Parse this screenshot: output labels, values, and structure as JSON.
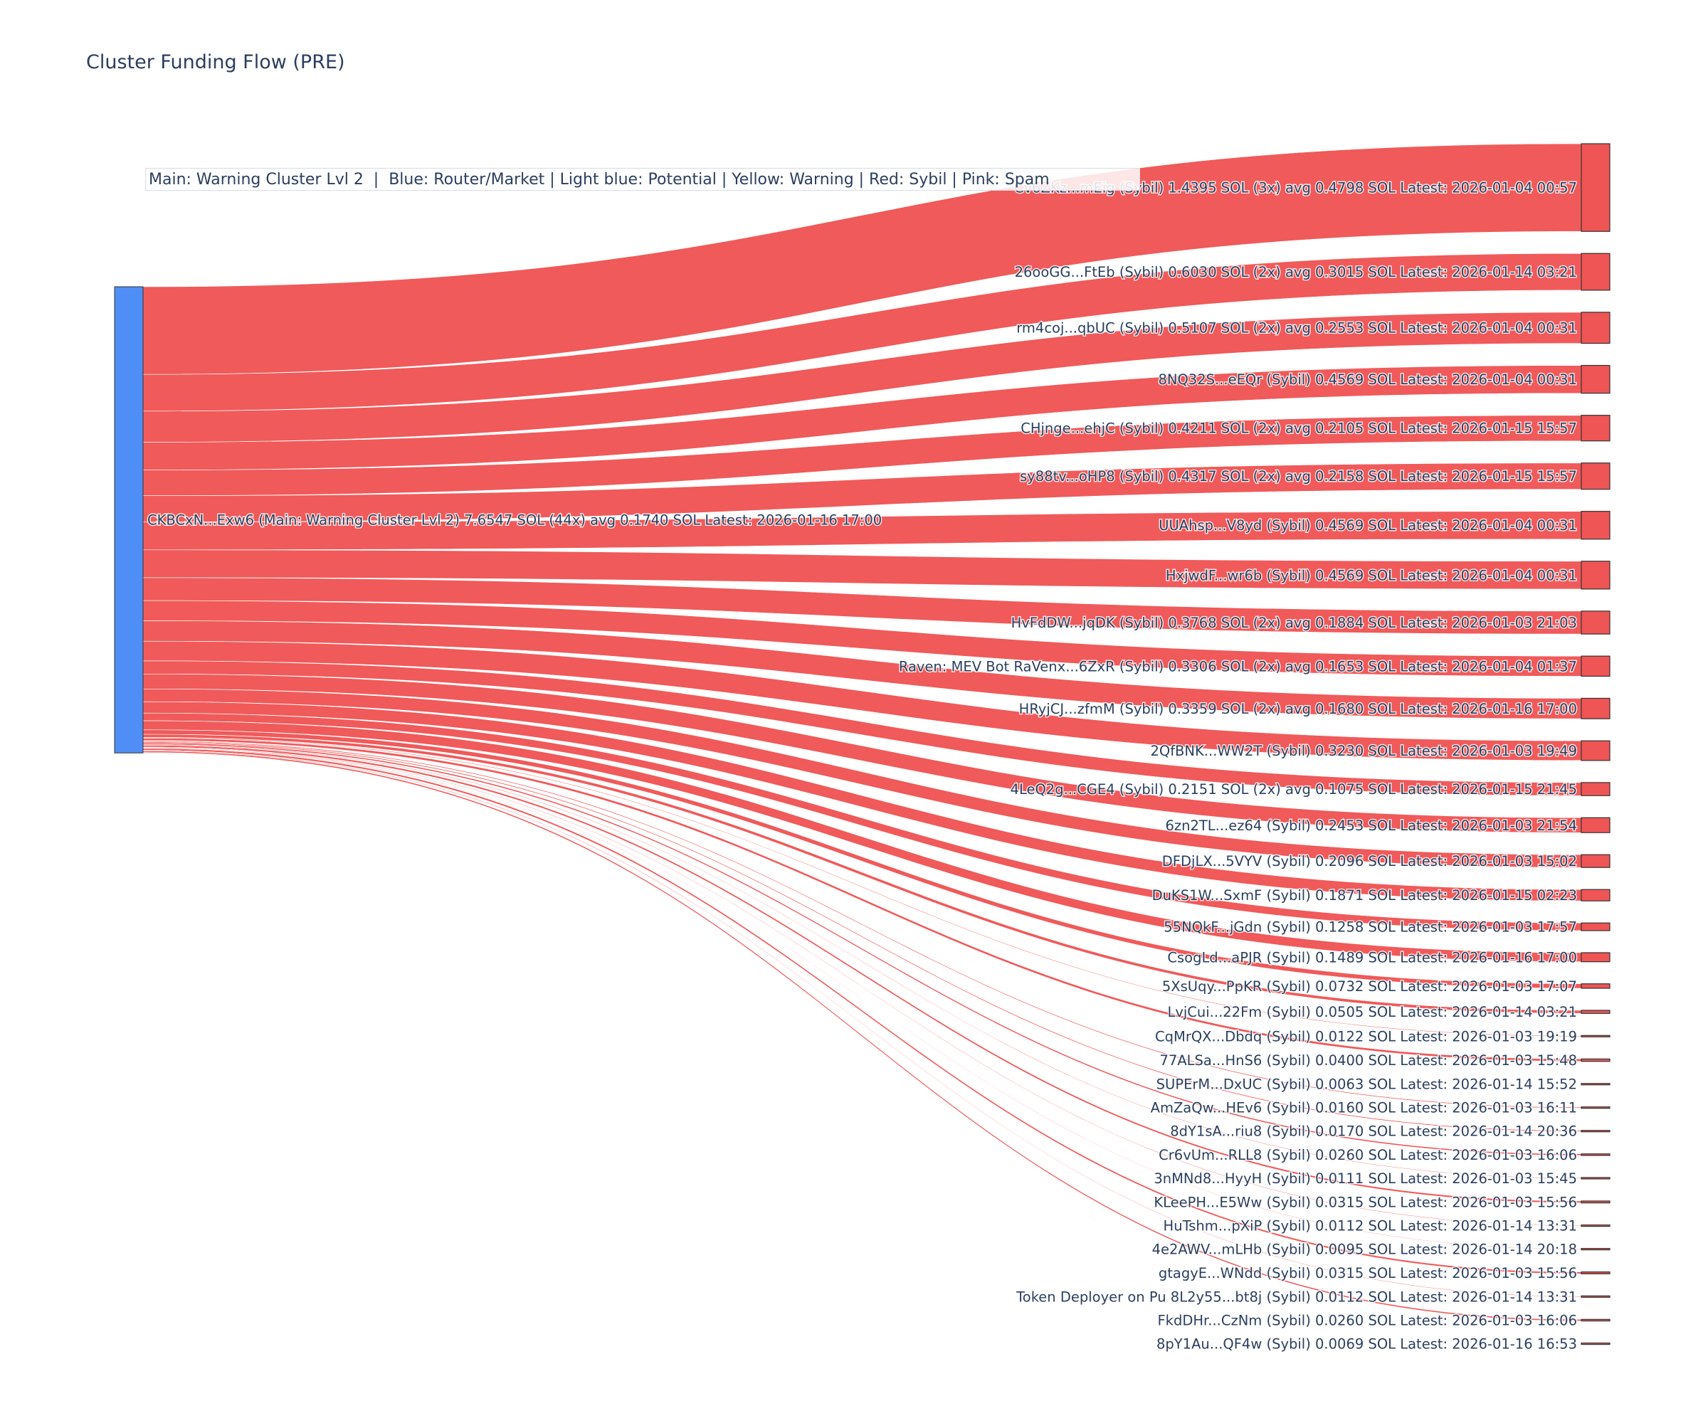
{
  "chart_data": {
    "type": "sankey",
    "title": "Cluster Funding Flow (PRE)",
    "legend_text": "Main: Warning Cluster Lvl 2  |  Blue: Router/Market | Light blue: Potential | Yellow: Warning | Red: Sybil | Pink: Spam",
    "colors": {
      "source": "#4f8ef7",
      "sybil": "#ef5555",
      "link": "#ef5555"
    },
    "source": {
      "label": "CKBCxN...Exw6 (Main: Warning Cluster Lvl 2) 7.6547 SOL (44x) avg 0.1740 SOL Latest: 2026-01-16 17:00",
      "value": 7.6547
    },
    "targets": [
      {
        "value": 1.4395,
        "label": "Cv6ZKz...mEig (Sybil) 1.4395 SOL (3x) avg 0.4798 SOL Latest: 2026-01-04 00:57"
      },
      {
        "value": 0.603,
        "label": "26ooGG...FtEb (Sybil) 0.6030 SOL (2x) avg 0.3015 SOL Latest: 2026-01-14 03:21"
      },
      {
        "value": 0.5107,
        "label": "rm4coj...qbUC (Sybil) 0.5107 SOL (2x) avg 0.2553 SOL Latest: 2026-01-04 00:31"
      },
      {
        "value": 0.4569,
        "label": "8NQ32S...eEQr (Sybil) 0.4569 SOL Latest: 2026-01-04 00:31"
      },
      {
        "value": 0.4211,
        "label": "CHjnge...ehjC (Sybil) 0.4211 SOL (2x) avg 0.2105 SOL Latest: 2026-01-15 15:57"
      },
      {
        "value": 0.4317,
        "label": "sy88tv...oHP8 (Sybil) 0.4317 SOL (2x) avg 0.2158 SOL Latest: 2026-01-15 15:57"
      },
      {
        "value": 0.4569,
        "label": "UUAhsp...V8yd (Sybil) 0.4569 SOL Latest: 2026-01-04 00:31"
      },
      {
        "value": 0.4569,
        "label": "HxjwdF...wr6b (Sybil) 0.4569 SOL Latest: 2026-01-04 00:31"
      },
      {
        "value": 0.3768,
        "label": "HvFdDW...jqDK (Sybil) 0.3768 SOL (2x) avg 0.1884 SOL Latest: 2026-01-03 21:03"
      },
      {
        "value": 0.3306,
        "label": "Raven: MEV Bot RaVenx...6ZxR (Sybil) 0.3306 SOL (2x) avg 0.1653 SOL Latest: 2026-01-04 01:37"
      },
      {
        "value": 0.3359,
        "label": "HRyjCJ...zfmM (Sybil) 0.3359 SOL (2x) avg 0.1680 SOL Latest: 2026-01-16 17:00"
      },
      {
        "value": 0.323,
        "label": "2QfBNK...WW2T (Sybil) 0.3230 SOL Latest: 2026-01-03 19:49"
      },
      {
        "value": 0.2151,
        "label": "4LeQ2g...CGE4 (Sybil) 0.2151 SOL (2x) avg 0.1075 SOL Latest: 2026-01-15 21:45"
      },
      {
        "value": 0.2453,
        "label": "6zn2TL...ez64 (Sybil) 0.2453 SOL Latest: 2026-01-03 21:54"
      },
      {
        "value": 0.2096,
        "label": "DFDjLX...5VYV (Sybil) 0.2096 SOL Latest: 2026-01-03 15:02"
      },
      {
        "value": 0.1871,
        "label": "DuKS1W...SxmF (Sybil) 0.1871 SOL Latest: 2026-01-15 02:23"
      },
      {
        "value": 0.1258,
        "label": "55NQkF...jGdn (Sybil) 0.1258 SOL Latest: 2026-01-03 17:57"
      },
      {
        "value": 0.1489,
        "label": "CsogLd...aPJR (Sybil) 0.1489 SOL Latest: 2026-01-16 17:00"
      },
      {
        "value": 0.0732,
        "label": "5XsUqy...PpKR (Sybil) 0.0732 SOL Latest: 2026-01-03 17:07"
      },
      {
        "value": 0.0505,
        "label": "LvjCui...22Fm (Sybil) 0.0505 SOL Latest: 2026-01-14 03:21"
      },
      {
        "value": 0.0122,
        "label": "CqMrQX...Dbdq (Sybil) 0.0122 SOL Latest: 2026-01-03 19:19"
      },
      {
        "value": 0.04,
        "label": "77ALSa...HnS6 (Sybil) 0.0400 SOL Latest: 2026-01-03 15:48"
      },
      {
        "value": 0.0063,
        "label": "SUPErM...DxUC (Sybil) 0.0063 SOL Latest: 2026-01-14 15:52"
      },
      {
        "value": 0.016,
        "label": "AmZaQw...HEv6 (Sybil) 0.0160 SOL Latest: 2026-01-03 16:11"
      },
      {
        "value": 0.017,
        "label": "8dY1sA...riu8 (Sybil) 0.0170 SOL Latest: 2026-01-14 20:36"
      },
      {
        "value": 0.026,
        "label": "Cr6vUm...RLL8 (Sybil) 0.0260 SOL Latest: 2026-01-03 16:06"
      },
      {
        "value": 0.0111,
        "label": "3nMNd8...HyyH (Sybil) 0.0111 SOL Latest: 2026-01-03 15:45"
      },
      {
        "value": 0.0315,
        "label": "KLeePH...E5Ww (Sybil) 0.0315 SOL Latest: 2026-01-03 15:56"
      },
      {
        "value": 0.0112,
        "label": "HuTshm...pXiP (Sybil) 0.0112 SOL Latest: 2026-01-14 13:31"
      },
      {
        "value": 0.0095,
        "label": "4e2AWV...mLHb (Sybil) 0.0095 SOL Latest: 2026-01-14 20:18"
      },
      {
        "value": 0.0315,
        "label": "gtagyE...WNdd (Sybil) 0.0315 SOL Latest: 2026-01-03 15:56"
      },
      {
        "value": 0.0112,
        "label": "Token Deployer on Pu 8L2y55...bt8j (Sybil) 0.0112 SOL Latest: 2026-01-14 13:31"
      },
      {
        "value": 0.026,
        "label": "FkdDHr...CzNm (Sybil) 0.0260 SOL Latest: 2026-01-03 16:06"
      },
      {
        "value": 0.0069,
        "label": "8pY1Au...QF4w (Sybil) 0.0069 SOL Latest: 2026-01-16 16:53"
      }
    ]
  }
}
